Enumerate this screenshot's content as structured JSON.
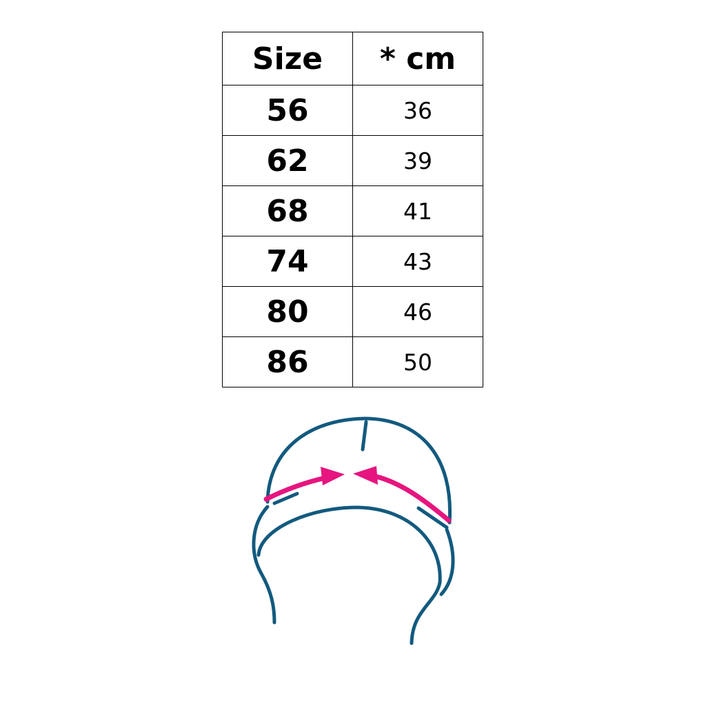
{
  "table": {
    "headers": [
      "Size",
      "* cm"
    ],
    "rows": [
      {
        "size": "56",
        "cm": "36"
      },
      {
        "size": "62",
        "cm": "39"
      },
      {
        "size": "68",
        "cm": "41"
      },
      {
        "size": "74",
        "cm": "43"
      },
      {
        "size": "80",
        "cm": "46"
      },
      {
        "size": "86",
        "cm": "50"
      }
    ]
  },
  "illustration": {
    "icon": "hat-head-circumference-icon",
    "colors": {
      "outline": "#135a7e",
      "arrow": "#e6157f"
    }
  }
}
